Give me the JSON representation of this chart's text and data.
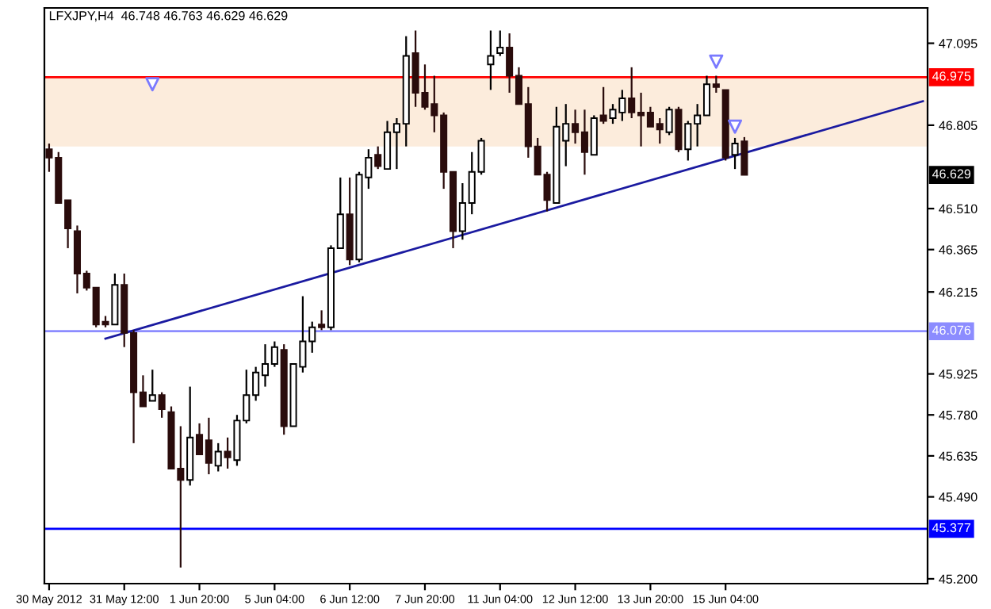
{
  "chart_data": {
    "type": "candlestick",
    "title": "LFXJPY,H4  46.748 46.763 46.629 46.629",
    "categories": [
      "30 May 2012",
      null,
      null,
      null,
      null,
      null,
      null,
      null,
      "31 May 12:00",
      null,
      null,
      null,
      null,
      null,
      null,
      null,
      "1 Jun 20:00",
      null,
      null,
      null,
      null,
      null,
      null,
      null,
      "5 Jun 04:00",
      null,
      null,
      null,
      null,
      null,
      null,
      null,
      "6 Jun 12:00",
      null,
      null,
      null,
      null,
      null,
      null,
      null,
      "7 Jun 20:00",
      null,
      null,
      null,
      null,
      null,
      null,
      null,
      "11 Jun 04:00",
      null,
      null,
      null,
      null,
      null,
      null,
      null,
      "12 Jun 12:00",
      null,
      null,
      null,
      null,
      null,
      null,
      null,
      "13 Jun 20:00",
      null,
      null,
      null,
      null,
      null,
      null,
      null,
      "15 Jun 04:00",
      null,
      null,
      null,
      null,
      null,
      null,
      null,
      null,
      null,
      null,
      null,
      null,
      null,
      null,
      null,
      null,
      null,
      null,
      null,
      null,
      null
    ],
    "ohlc": [
      [
        46.72,
        46.74,
        46.64,
        46.69
      ],
      [
        46.69,
        46.71,
        46.53,
        46.53
      ],
      [
        46.54,
        46.54,
        46.37,
        46.44
      ],
      [
        46.43,
        46.45,
        46.21,
        46.28
      ],
      [
        46.28,
        46.29,
        46.22,
        46.23
      ],
      [
        46.23,
        46.23,
        46.09,
        46.1
      ],
      [
        46.11,
        46.13,
        46.09,
        46.1
      ],
      [
        46.1,
        46.28,
        46.1,
        46.24
      ],
      [
        46.24,
        46.28,
        46.02,
        46.07
      ],
      [
        46.07,
        46.08,
        45.68,
        45.86
      ],
      [
        45.86,
        45.92,
        45.81,
        45.81
      ],
      [
        45.83,
        45.94,
        45.83,
        45.85
      ],
      [
        45.85,
        45.86,
        45.77,
        45.8
      ],
      [
        45.79,
        45.81,
        45.59,
        45.59
      ],
      [
        45.59,
        45.74,
        45.24,
        45.55
      ],
      [
        45.55,
        45.88,
        45.53,
        45.7
      ],
      [
        45.71,
        45.75,
        45.64,
        45.64
      ],
      [
        45.69,
        45.77,
        45.57,
        45.61
      ],
      [
        45.6,
        45.68,
        45.58,
        45.65
      ],
      [
        45.65,
        45.7,
        45.59,
        45.63
      ],
      [
        45.62,
        45.78,
        45.6,
        45.76
      ],
      [
        45.76,
        45.94,
        45.75,
        45.85
      ],
      [
        45.85,
        45.95,
        45.83,
        45.93
      ],
      [
        45.92,
        46.03,
        45.88,
        45.96
      ],
      [
        45.96,
        46.04,
        45.95,
        46.02
      ],
      [
        46.01,
        46.03,
        45.71,
        45.74
      ],
      [
        45.74,
        45.96,
        45.74,
        45.96
      ],
      [
        45.95,
        46.2,
        45.93,
        46.04
      ],
      [
        46.04,
        46.11,
        46.0,
        46.09
      ],
      [
        46.1,
        46.15,
        46.08,
        46.09
      ],
      [
        46.09,
        46.38,
        46.08,
        46.37
      ],
      [
        46.37,
        46.62,
        46.37,
        46.49
      ],
      [
        46.49,
        46.62,
        46.31,
        46.33
      ],
      [
        46.33,
        46.64,
        46.32,
        46.63
      ],
      [
        46.62,
        46.72,
        46.58,
        46.69
      ],
      [
        46.7,
        46.73,
        46.65,
        46.66
      ],
      [
        46.65,
        46.82,
        46.65,
        46.78
      ],
      [
        46.78,
        46.83,
        46.65,
        46.81
      ],
      [
        46.81,
        47.12,
        46.73,
        47.05
      ],
      [
        47.06,
        47.14,
        46.87,
        46.92
      ],
      [
        46.92,
        47.02,
        46.86,
        46.87
      ],
      [
        46.88,
        46.98,
        46.78,
        46.84
      ],
      [
        46.84,
        46.85,
        46.58,
        46.64
      ],
      [
        46.64,
        46.64,
        46.37,
        46.43
      ],
      [
        46.43,
        46.6,
        46.4,
        46.53
      ],
      [
        46.53,
        46.71,
        46.49,
        46.64
      ],
      [
        46.64,
        46.76,
        46.63,
        46.75
      ],
      [
        47.02,
        47.14,
        46.93,
        47.05
      ],
      [
        47.06,
        47.14,
        47.05,
        47.08
      ],
      [
        47.08,
        47.13,
        46.92,
        46.98
      ],
      [
        46.98,
        47.01,
        46.88,
        46.88
      ],
      [
        46.88,
        46.94,
        46.69,
        46.73
      ],
      [
        46.73,
        46.76,
        46.63,
        46.63
      ],
      [
        46.63,
        46.64,
        46.5,
        46.54
      ],
      [
        46.53,
        46.87,
        46.53,
        46.8
      ],
      [
        46.75,
        46.88,
        46.66,
        46.81
      ],
      [
        46.81,
        46.86,
        46.74,
        46.78
      ],
      [
        46.78,
        46.86,
        46.63,
        46.71
      ],
      [
        46.7,
        46.84,
        46.7,
        46.83
      ],
      [
        46.84,
        46.94,
        46.81,
        46.82
      ],
      [
        46.83,
        46.88,
        46.81,
        46.86
      ],
      [
        46.85,
        46.93,
        46.82,
        46.9
      ],
      [
        46.9,
        47.01,
        46.83,
        46.85
      ],
      [
        46.85,
        46.92,
        46.73,
        46.84
      ],
      [
        46.85,
        46.87,
        46.8,
        46.8
      ],
      [
        46.81,
        46.83,
        46.74,
        46.79
      ],
      [
        46.78,
        46.87,
        46.77,
        46.86
      ],
      [
        46.86,
        46.87,
        46.71,
        46.72
      ],
      [
        46.72,
        46.82,
        46.68,
        46.81
      ],
      [
        46.81,
        46.88,
        46.73,
        46.84
      ],
      [
        46.84,
        46.98,
        46.84,
        46.95
      ],
      [
        46.95,
        46.98,
        46.92,
        46.94
      ],
      [
        46.93,
        46.93,
        46.68,
        46.69
      ],
      [
        46.7,
        46.76,
        46.65,
        46.74
      ],
      [
        46.748,
        46.763,
        46.629,
        46.629
      ],
      null,
      null,
      null,
      null,
      null,
      null,
      null,
      null,
      null,
      null,
      null,
      null,
      null,
      null,
      null,
      null,
      null,
      null,
      null
    ],
    "colors": [
      "#2a0c0c",
      "#2a0c0c",
      "#2a0c0c",
      "#2a0c0c",
      "#2a0c0c",
      "#2a0c0c",
      "#2a0c0c",
      "#ffffff",
      "#2a0c0c",
      "#2a0c0c",
      "#2a0c0c",
      "#ffffff",
      "#2a0c0c",
      "#2a0c0c",
      "#2a0c0c",
      "#ffffff",
      "#2a0c0c",
      "#2a0c0c",
      "#ffffff",
      "#2a0c0c",
      "#ffffff",
      "#ffffff",
      "#ffffff",
      "#ffffff",
      "#ffffff",
      "#2a0c0c",
      "#ffffff",
      "#ffffff",
      "#ffffff",
      "#2a0c0c",
      "#ffffff",
      "#ffffff",
      "#2a0c0c",
      "#ffffff",
      "#ffffff",
      "#2a0c0c",
      "#ffffff",
      "#ffffff",
      "#ffffff",
      "#2a0c0c",
      "#2a0c0c",
      "#2a0c0c",
      "#2a0c0c",
      "#2a0c0c",
      "#ffffff",
      "#ffffff",
      "#ffffff",
      "#ffffff",
      "#ffffff",
      "#2a0c0c",
      "#2a0c0c",
      "#2a0c0c",
      "#2a0c0c",
      "#2a0c0c",
      "#ffffff",
      "#ffffff",
      "#2a0c0c",
      "#2a0c0c",
      "#ffffff",
      "#2a0c0c",
      "#ffffff",
      "#ffffff",
      "#2a0c0c",
      "#2a0c0c",
      "#2a0c0c",
      "#2a0c0c",
      "#ffffff",
      "#2a0c0c",
      "#ffffff",
      "#ffffff",
      "#ffffff",
      "#2a0c0c",
      "#2a0c0c",
      "#ffffff",
      "#2a0c0c",
      null,
      null,
      null,
      null,
      null,
      null,
      null,
      null,
      null,
      null,
      null,
      null,
      null,
      null,
      null,
      null,
      null,
      null,
      null
    ],
    "series": [
      {
        "type": "line",
        "color": "#1a1aa0",
        "values": [
          null,
          null,
          null,
          null,
          null,
          null,
          46.05,
          null,
          null,
          null,
          null,
          null,
          null,
          null,
          null,
          null,
          null,
          null,
          null,
          null,
          null,
          null,
          null,
          null,
          null,
          null,
          null,
          null,
          null,
          null,
          null,
          null,
          null,
          null,
          null,
          null,
          null,
          null,
          null,
          null,
          null,
          null,
          null,
          null,
          null,
          null,
          null,
          null,
          null,
          null,
          null,
          null,
          null,
          null,
          null,
          null,
          null,
          null,
          null,
          null,
          null,
          null,
          null,
          null,
          null,
          null,
          null,
          null,
          null,
          null,
          null,
          null,
          null,
          null,
          null,
          null,
          null,
          null,
          null,
          null,
          null,
          null,
          null,
          null,
          null,
          null,
          null,
          null,
          null,
          null,
          null,
          null,
          null,
          46.89
        ]
      },
      {
        "type": "scatter",
        "marker": "triangle",
        "color": "#7a7aff",
        "values": [
          null,
          null,
          null,
          null,
          null,
          null,
          null,
          null,
          null,
          null,
          null,
          46.95,
          null,
          null,
          null,
          null,
          null,
          null,
          null,
          null,
          null,
          null,
          null,
          null,
          null,
          null,
          null,
          null,
          null,
          null,
          null,
          null,
          null,
          null,
          null,
          null,
          null,
          null,
          null,
          null,
          null,
          null,
          null,
          null,
          null,
          null,
          null,
          null,
          null,
          null,
          null,
          null,
          null,
          null,
          null,
          null,
          null,
          null,
          null,
          null,
          null,
          null,
          null,
          null,
          null,
          null,
          null,
          null,
          null,
          null,
          null,
          47.03,
          null,
          46.8,
          null,
          null,
          null,
          null,
          null,
          null,
          null,
          null,
          null,
          null,
          null,
          null,
          null,
          null,
          null,
          null,
          null,
          null,
          null,
          null
        ]
      }
    ],
    "ref_lines": [
      {
        "axis": "y",
        "value": 46.975,
        "label": "46.975",
        "color": "#ff0000"
      },
      {
        "axis": "y",
        "value": 46.076,
        "label": "46.076",
        "color": "#8c8cff"
      },
      {
        "axis": "y",
        "value": 45.377,
        "label": "45.377",
        "color": "#0000ff"
      }
    ],
    "bands": [
      {
        "axis": "y",
        "from": 46.73,
        "to": 46.975,
        "color": "#fcecdc"
      }
    ],
    "annotations": [
      {
        "text": "46.629",
        "y": 46.629
      }
    ],
    "ylim": [
      45.183,
      47.22
    ],
    "yticks": [
      {
        "value": 47.095,
        "label": "47.095"
      },
      {
        "value": 46.805,
        "label": "46.805"
      },
      {
        "value": 46.51,
        "label": "46.510"
      },
      {
        "value": 46.365,
        "label": "46.365"
      },
      {
        "value": 46.215,
        "label": "46.215"
      },
      {
        "value": 45.925,
        "label": "45.925"
      },
      {
        "value": 45.78,
        "label": "45.780"
      },
      {
        "value": 45.635,
        "label": "45.635"
      },
      {
        "value": 45.49,
        "label": "45.490"
      },
      {
        "value": 45.2,
        "label": "45.200"
      }
    ],
    "grid": false
  }
}
